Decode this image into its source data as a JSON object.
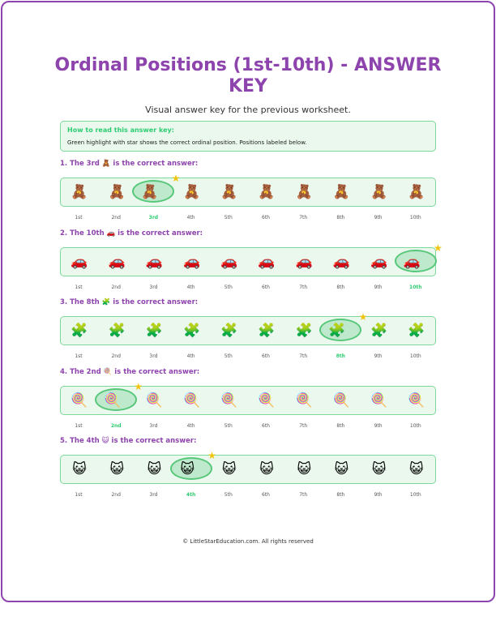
{
  "title": "Ordinal Positions (1st-10th) - ANSWER KEY",
  "subtitle": "Visual answer key for the previous worksheet.",
  "info": {
    "heading": "How to read this answer key:",
    "text": "Green highlight with star shows the correct ordinal position. Positions labeled below."
  },
  "ordinals": [
    "1st",
    "2nd",
    "3rd",
    "4th",
    "5th",
    "6th",
    "7th",
    "8th",
    "9th",
    "10th"
  ],
  "questions": [
    {
      "pre": "1. The 3rd",
      "emoji": "🧸",
      "post": "is the correct answer:",
      "item": "teddy-bear",
      "answer": 3
    },
    {
      "pre": "2. The 10th",
      "emoji": "🚗",
      "post": "is the correct answer:",
      "item": "car",
      "answer": 10
    },
    {
      "pre": "3. The 8th",
      "emoji": "🧩",
      "post": "is the correct answer:",
      "item": "puzzle-piece",
      "answer": 8
    },
    {
      "pre": "4. The 2nd",
      "emoji": "🍭",
      "post": "is the correct answer:",
      "item": "lollipop",
      "answer": 2
    },
    {
      "pre": "5. The 4th",
      "emoji": "😺",
      "post": "is the correct answer:",
      "item": "cat",
      "answer": 4
    }
  ],
  "star": "★",
  "footer": "© LittleStarEducation.com. All rights reserved"
}
